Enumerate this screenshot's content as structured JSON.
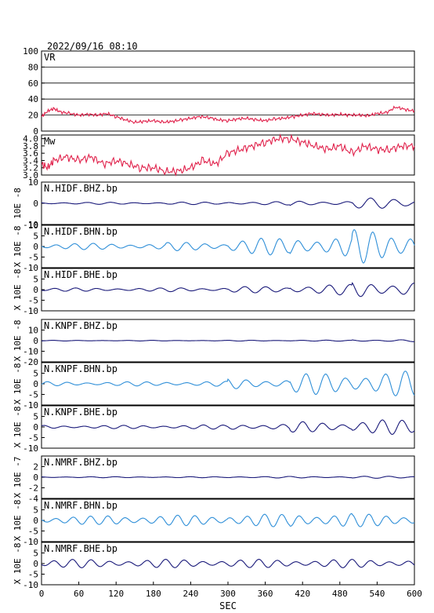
{
  "header": {
    "timestamp": "2022/09/16  08:10"
  },
  "x_axis": {
    "label": "SEC",
    "min": 0,
    "max": 600,
    "ticks": [
      "0",
      "60",
      "120",
      "180",
      "240",
      "300",
      "360",
      "420",
      "480",
      "540",
      "600"
    ]
  },
  "colors": {
    "vr": "#e0204a",
    "mw": "#e0204a",
    "dark": "#1a1a7a",
    "light": "#2f8fd8"
  },
  "chart_data": [
    {
      "type": "line",
      "label": "VR",
      "ylim": [
        0,
        100
      ],
      "yticks": [
        "100",
        "80",
        "60",
        "40",
        "20",
        "0"
      ],
      "grid": "horizontal",
      "series": [
        {
          "x": [
            0,
            10,
            20,
            30,
            45,
            60,
            75,
            90,
            105,
            120,
            135,
            150,
            165,
            180,
            195,
            210,
            225,
            240,
            255,
            270,
            285,
            300,
            315,
            330,
            345,
            360,
            375,
            390,
            405,
            420,
            435,
            450,
            465,
            480,
            495,
            510,
            525,
            540,
            555,
            570,
            585,
            600
          ],
          "y": [
            18,
            25,
            28,
            24,
            22,
            20,
            21,
            20,
            22,
            18,
            14,
            11,
            12,
            13,
            11,
            12,
            14,
            16,
            18,
            17,
            14,
            13,
            15,
            16,
            14,
            13,
            15,
            16,
            18,
            20,
            22,
            21,
            20,
            21,
            20,
            20,
            19,
            22,
            23,
            30,
            27,
            25
          ]
        }
      ]
    },
    {
      "type": "line",
      "label": "Mw",
      "ylim": [
        3.0,
        4.1
      ],
      "yticks": [
        "4.0",
        "3.8",
        "3.6",
        "3.4",
        "3.2",
        "3.0"
      ],
      "yticklabels": [
        "4.0",
        "3.8",
        "3.6",
        "3.4",
        "3.2",
        "3.0"
      ],
      "series": [
        {
          "x": [
            0,
            10,
            20,
            40,
            60,
            80,
            100,
            120,
            140,
            160,
            180,
            200,
            220,
            240,
            260,
            280,
            300,
            320,
            340,
            360,
            380,
            400,
            420,
            440,
            460,
            480,
            500,
            520,
            540,
            560,
            580,
            600
          ],
          "y": [
            3.3,
            3.2,
            3.4,
            3.5,
            3.4,
            3.5,
            3.3,
            3.4,
            3.3,
            3.2,
            3.2,
            3.1,
            3.1,
            3.2,
            3.4,
            3.3,
            3.6,
            3.7,
            3.8,
            3.9,
            4.0,
            4.0,
            3.9,
            3.8,
            3.7,
            3.8,
            3.6,
            3.8,
            3.7,
            3.7,
            3.8,
            3.8
          ]
        }
      ]
    },
    {
      "type": "line",
      "label": "N.HIDF.BHZ.bp",
      "ylabel": "10E -8",
      "ylim": [
        -10,
        10
      ],
      "yticks": [
        "10",
        "0",
        "-10"
      ],
      "amps": [
        0.5,
        0.5,
        0.6,
        0.8,
        1.2,
        2.5
      ],
      "period": 38,
      "color": "dark"
    },
    {
      "type": "line",
      "label": "N.HIDF.BHN.bp",
      "ylabel": "X 10E -8",
      "ylim": [
        -10,
        10
      ],
      "yticks": [
        "10",
        "5",
        "0",
        "-5",
        "-10"
      ],
      "amps": [
        1.5,
        1.5,
        2,
        4,
        5,
        8
      ],
      "period": 30,
      "color": "light"
    },
    {
      "type": "line",
      "label": "N.HIDF.BHE.bp",
      "ylabel": "X 10E -8",
      "ylim": [
        -10,
        10
      ],
      "yticks": [
        "5",
        "0",
        "-5",
        "-10"
      ],
      "amps": [
        0.8,
        0.8,
        1,
        1.5,
        2.5,
        4
      ],
      "period": 34,
      "color": "dark"
    },
    {
      "type": "line",
      "label": "N.KNPF.BHZ.bp",
      "ylabel": "X 10E -8",
      "ylim": [
        -20,
        20
      ],
      "yticks": [
        "10",
        "0",
        "-10",
        "-20"
      ],
      "amps": [
        0.3,
        0.3,
        0.3,
        0.4,
        0.5,
        1
      ],
      "period": 40,
      "color": "dark"
    },
    {
      "type": "line",
      "label": "N.KNPF.BHN.bp",
      "ylabel": "X 10E -8",
      "ylim": [
        -10,
        10
      ],
      "yticks": [
        "5",
        "0",
        "-5",
        "-10"
      ],
      "amps": [
        1,
        1,
        1.2,
        2.5,
        5,
        6
      ],
      "period": 32,
      "color": "light"
    },
    {
      "type": "line",
      "label": "N.KNPF.BHE.bp",
      "ylabel": "X 10E -8",
      "ylim": [
        -10,
        10
      ],
      "yticks": [
        "5",
        "0",
        "-5",
        "-10"
      ],
      "amps": [
        0.8,
        0.8,
        1,
        1.5,
        2.5,
        3.5
      ],
      "period": 32,
      "color": "dark"
    },
    {
      "type": "line",
      "label": "N.NMRF.BHZ.bp",
      "ylabel": "X 10E -7",
      "ylim": [
        -4,
        4
      ],
      "yticks": [
        "2",
        "0",
        "-2",
        "-4"
      ],
      "amps": [
        0.1,
        0.1,
        0.1,
        0.15,
        0.15,
        0.2
      ],
      "period": 40,
      "color": "dark"
    },
    {
      "type": "line",
      "label": "N.NMRF.BHN.bp",
      "ylabel": "X 10E -8",
      "ylim": [
        -10,
        10
      ],
      "yticks": [
        "5",
        "0",
        "-5",
        "-10"
      ],
      "amps": [
        2,
        2.5,
        2.5,
        3,
        3.5,
        3
      ],
      "period": 28,
      "color": "light"
    },
    {
      "type": "line",
      "label": "N.NMRF.BHE.bp",
      "ylabel": "X 10E -8",
      "ylim": [
        -10,
        10
      ],
      "yticks": [
        "5",
        "0",
        "-5",
        "-10"
      ],
      "amps": [
        2,
        2,
        2,
        2,
        2,
        2
      ],
      "period": 30,
      "color": "dark"
    }
  ]
}
